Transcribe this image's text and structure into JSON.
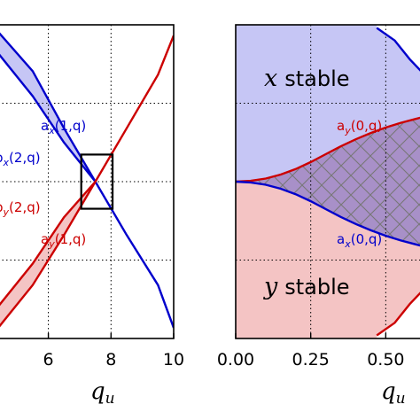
{
  "chart_data": [
    {
      "type": "line",
      "panel": "left",
      "x_ticks": [
        6,
        8,
        10
      ],
      "x_tick_labels": [
        "6",
        "8",
        "10"
      ],
      "xlim": [
        4.4,
        10
      ],
      "ylim": [
        -2.2,
        2.2
      ],
      "xlabel_main": "q",
      "xlabel_sub": "u",
      "grid": true,
      "grid_style": "dotted",
      "series": [
        {
          "label_main": "a",
          "label_sub": "x",
          "label_args": "(1,q)",
          "color": "#0000cc",
          "x": [
            4.4,
            5.5,
            6.5,
            7.5,
            8.5,
            9.5,
            10
          ],
          "y": [
            2.1,
            1.55,
            0.75,
            0.0,
            -0.75,
            -1.45,
            -2.05
          ]
        },
        {
          "label_main": "b",
          "label_sub": "x",
          "label_args": "(2,q)",
          "color": "#0000cc",
          "x": [
            4.4,
            5.5,
            6.5,
            7.5
          ],
          "y": [
            1.8,
            1.2,
            0.55,
            0.0
          ]
        },
        {
          "label_main": "a",
          "label_sub": "y",
          "label_args": "(1,q)",
          "color": "#cc0000",
          "x": [
            4.4,
            5.5,
            6.5,
            7.5,
            8.5,
            9.5,
            10
          ],
          "y": [
            -2.05,
            -1.45,
            -0.75,
            0.0,
            0.75,
            1.5,
            2.05
          ]
        },
        {
          "label_main": "b",
          "label_sub": "y",
          "label_args": "(2,q)",
          "color": "#cc0000",
          "x": [
            4.4,
            5.5,
            6.5,
            7.5
          ],
          "y": [
            -1.75,
            -1.15,
            -0.5,
            0.0
          ]
        }
      ],
      "highlight_box": {
        "x": [
          7.05,
          8.05
        ],
        "y": [
          -0.38,
          0.38
        ]
      },
      "colors": {
        "blue": "#0000cc",
        "red": "#cc0000",
        "blue_fill": "#c6c6f5",
        "red_fill": "#f4c4c4"
      }
    },
    {
      "type": "area",
      "panel": "right",
      "x_ticks": [
        0.0,
        0.25,
        0.5
      ],
      "x_tick_labels": [
        "0.00",
        "0.25",
        "0.50"
      ],
      "xlim": [
        0,
        0.62
      ],
      "ylim": [
        -1,
        1
      ],
      "xlabel_main": "q",
      "xlabel_sub": "u",
      "grid": true,
      "grid_style": "dotted",
      "series": [
        {
          "label_main": "a",
          "label_sub": "y",
          "label_args": "(0,q)",
          "color": "#cc0000",
          "x": [
            0,
            0.05,
            0.1,
            0.15,
            0.2,
            0.25,
            0.3,
            0.35,
            0.4,
            0.45,
            0.5,
            0.55,
            0.6,
            0.62
          ],
          "y": [
            0,
            0.005,
            0.02,
            0.045,
            0.08,
            0.125,
            0.175,
            0.225,
            0.27,
            0.31,
            0.345,
            0.375,
            0.4,
            0.41
          ]
        },
        {
          "label_main": "a",
          "label_sub": "x",
          "label_args": "(0,q)",
          "color": "#0000cc",
          "x": [
            0,
            0.05,
            0.1,
            0.15,
            0.2,
            0.25,
            0.3,
            0.35,
            0.4,
            0.45,
            0.5,
            0.55,
            0.6,
            0.62
          ],
          "y": [
            0,
            -0.005,
            -0.02,
            -0.045,
            -0.08,
            -0.125,
            -0.175,
            -0.225,
            -0.27,
            -0.31,
            -0.345,
            -0.375,
            -0.4,
            -0.41
          ]
        }
      ],
      "regions": [
        {
          "label_var": "x",
          "label_word": "stable",
          "color": "#c6c6f5"
        },
        {
          "label_var": "y",
          "label_word": "stable",
          "color": "#f4c4c4"
        }
      ],
      "upper_boundary": {
        "x": [
          0.47,
          0.53,
          0.58,
          0.62
        ],
        "y": [
          0.98,
          0.9,
          0.78,
          0.7
        ]
      },
      "lower_boundary": {
        "x": [
          0.47,
          0.53,
          0.58,
          0.62
        ],
        "y": [
          -0.98,
          -0.9,
          -0.78,
          -0.7
        ]
      },
      "overlap_color": "#a890c8",
      "hatch_color": "#777777"
    }
  ]
}
